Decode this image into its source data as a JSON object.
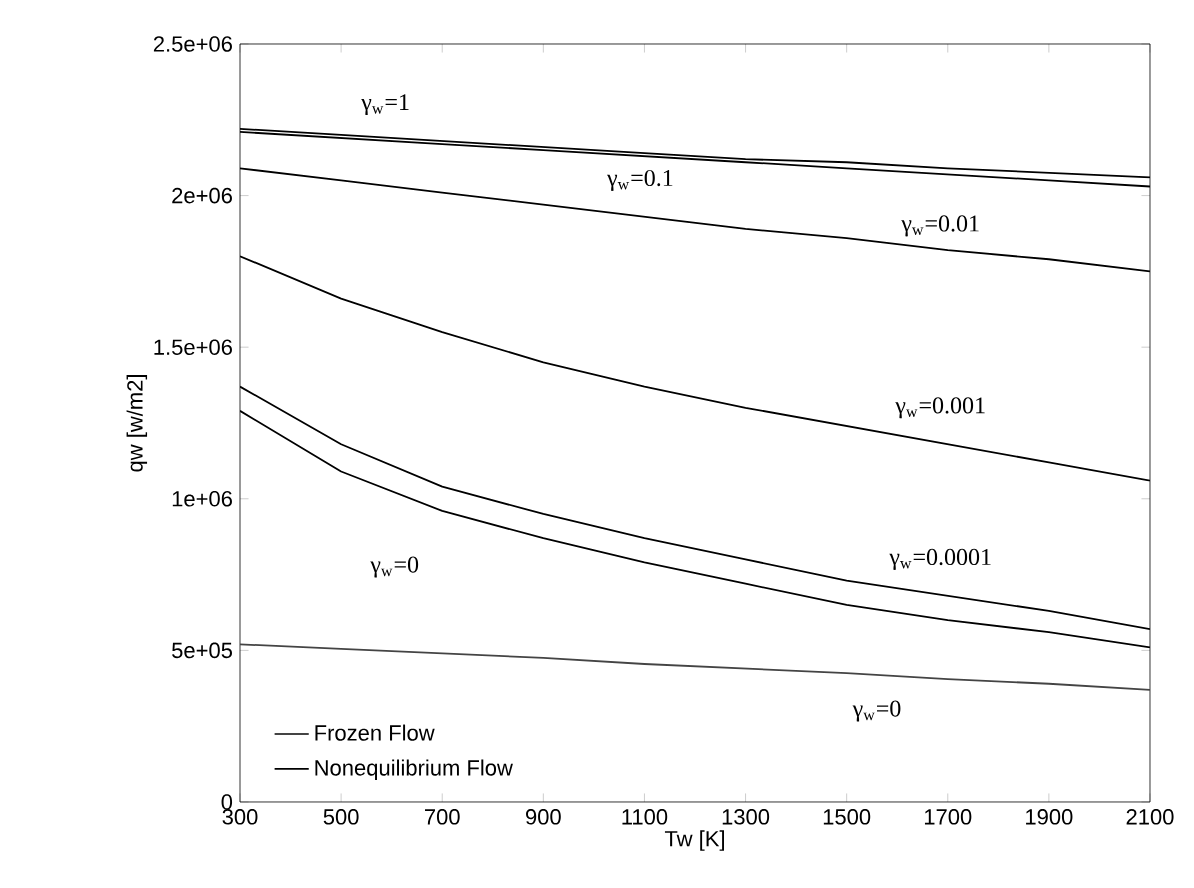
{
  "chart_data": {
    "type": "line",
    "xlabel": "Tw [K]",
    "ylabel": "qw [w/m2]",
    "xlim": [
      300,
      2100
    ],
    "xticks": [
      300,
      500,
      700,
      900,
      1100,
      1300,
      1500,
      1700,
      1900,
      2100
    ],
    "ylim": [
      0,
      2500000
    ],
    "yticks": [
      {
        "value": 0,
        "label": "0"
      },
      {
        "value": 500000,
        "label": "5e+05"
      },
      {
        "value": 1000000,
        "label": "1e+06"
      },
      {
        "value": 1500000,
        "label": "1.5e+06"
      },
      {
        "value": 2000000,
        "label": "2e+06"
      },
      {
        "value": 2500000,
        "label": "2.5e+06"
      }
    ],
    "x": [
      300,
      500,
      700,
      900,
      1100,
      1300,
      1500,
      1700,
      1900,
      2100
    ],
    "series": [
      {
        "name": "Frozen Flow",
        "color": "#444444",
        "values": [
          520000,
          505000,
          490000,
          475000,
          455000,
          440000,
          425000,
          405000,
          390000,
          370000
        ]
      },
      {
        "color": "#000000",
        "values": [
          2220000,
          2200000,
          2180000,
          2160000,
          2140000,
          2120000,
          2110000,
          2090000,
          2075000,
          2060000
        ]
      },
      {
        "color": "#000000",
        "values": [
          2210000,
          2190000,
          2170000,
          2150000,
          2130000,
          2110000,
          2090000,
          2070000,
          2050000,
          2030000
        ]
      },
      {
        "color": "#000000",
        "values": [
          2090000,
          2050000,
          2010000,
          1970000,
          1930000,
          1890000,
          1860000,
          1820000,
          1790000,
          1750000
        ]
      },
      {
        "color": "#000000",
        "values": [
          1800000,
          1660000,
          1550000,
          1450000,
          1370000,
          1300000,
          1240000,
          1180000,
          1120000,
          1060000
        ]
      },
      {
        "name": "Nonequilibrium Flow",
        "color": "#000000",
        "values": [
          1370000,
          1180000,
          1040000,
          950000,
          870000,
          800000,
          730000,
          680000,
          630000,
          570000
        ]
      },
      {
        "color": "#000000",
        "values": [
          1290000,
          1090000,
          960000,
          870000,
          790000,
          720000,
          650000,
          600000,
          560000,
          510000
        ]
      }
    ],
    "annotations": [
      "γ$_{w}$=1",
      "γ$_{w}$=0.1",
      "γ$_{w}$=0.01",
      "γ$_{w}$=0.001",
      "γ$_{w}$=0.0001",
      "γ$_{w}$=0",
      "γ$_{w}$=0"
    ],
    "legend": "bottom left",
    "marker": "none",
    "line_style": "solid"
  }
}
